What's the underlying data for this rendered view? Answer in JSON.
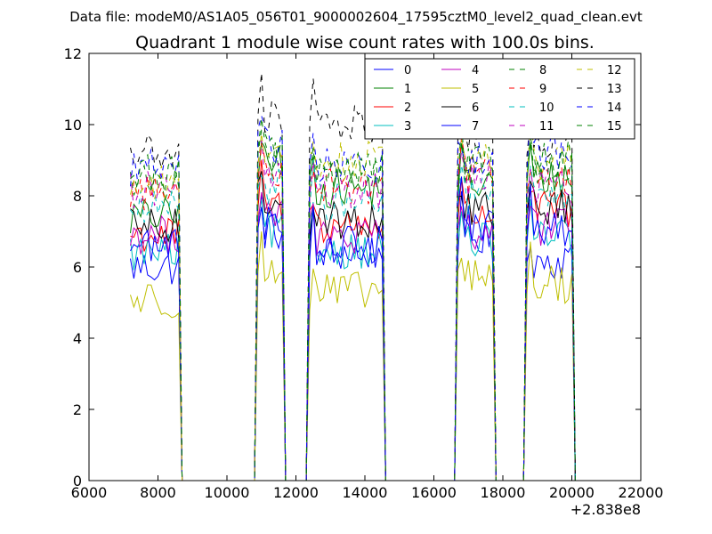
{
  "chart_data": {
    "type": "line",
    "suptitle": "Data file: modeM0/AS1A05_056T01_9000002604_17595cztM0_level2_quad_clean.evt",
    "title": "Quadrant 1 module wise count rates with 100.0s bins.",
    "xlabel": "",
    "ylabel": "",
    "xlim": [
      6000,
      22000
    ],
    "ylim": [
      0,
      12
    ],
    "xticks": [
      6000,
      8000,
      10000,
      12000,
      14000,
      16000,
      18000,
      20000,
      22000
    ],
    "yticks": [
      0,
      2,
      4,
      6,
      8,
      10,
      12
    ],
    "x_offset_label": "+2.838e8",
    "legend": {
      "location": "top-right",
      "columns": 4
    },
    "x_start": 7200,
    "bin_width": 100,
    "segments": [
      {
        "start": 7200,
        "end": 8700
      },
      {
        "start": 10900,
        "end": 11700
      },
      {
        "start": 12400,
        "end": 14600
      },
      {
        "start": 16700,
        "end": 17800
      },
      {
        "start": 18700,
        "end": 20100
      }
    ],
    "gaps": [
      {
        "x": [
          8700,
          8800,
          10800,
          10900
        ],
        "y": [
          0,
          0,
          0,
          0
        ]
      },
      {
        "x": [
          11700,
          11800,
          12300,
          12400
        ],
        "y": [
          0,
          0,
          0,
          0
        ]
      },
      {
        "x": [
          14600,
          14700,
          16600,
          16700
        ],
        "y": [
          0,
          0,
          0,
          0
        ]
      },
      {
        "x": [
          17800,
          17900,
          18600,
          18700
        ],
        "y": [
          0,
          0,
          0,
          0
        ]
      }
    ],
    "series": [
      {
        "name": "0",
        "color": "#0000ff",
        "dash": "solid",
        "levels": [
          6.0,
          7.0,
          6.4,
          6.8,
          6.2
        ]
      },
      {
        "name": "1",
        "color": "#008000",
        "dash": "solid",
        "levels": [
          7.4,
          8.9,
          8.2,
          8.3,
          8.5
        ]
      },
      {
        "name": "2",
        "color": "#ff0000",
        "dash": "solid",
        "levels": [
          6.9,
          7.7,
          7.2,
          7.5,
          7.6
        ]
      },
      {
        "name": "3",
        "color": "#00bfbf",
        "dash": "solid",
        "levels": [
          6.4,
          7.0,
          6.5,
          6.7,
          6.8
        ]
      },
      {
        "name": "4",
        "color": "#bf00bf",
        "dash": "solid",
        "levels": [
          6.9,
          7.6,
          6.8,
          7.0,
          7.1
        ]
      },
      {
        "name": "5",
        "color": "#bfbf00",
        "dash": "solid",
        "levels": [
          5.1,
          5.8,
          5.3,
          5.7,
          5.5
        ]
      },
      {
        "name": "6",
        "color": "#000000",
        "dash": "solid",
        "levels": [
          7.1,
          7.9,
          7.3,
          7.6,
          7.7
        ]
      },
      {
        "name": "7",
        "color": "#0000ff",
        "dash": "solid",
        "levels": [
          6.6,
          7.3,
          6.6,
          7.2,
          7.0
        ]
      },
      {
        "name": "8",
        "color": "#008000",
        "dash": "dashed",
        "levels": [
          8.4,
          9.1,
          8.6,
          8.8,
          8.8
        ]
      },
      {
        "name": "9",
        "color": "#ff0000",
        "dash": "dashed",
        "levels": [
          8.1,
          8.8,
          8.3,
          8.6,
          8.4
        ]
      },
      {
        "name": "10",
        "color": "#00bfbf",
        "dash": "dashed",
        "levels": [
          7.6,
          8.3,
          7.8,
          8.0,
          7.9
        ]
      },
      {
        "name": "11",
        "color": "#bf00bf",
        "dash": "dashed",
        "levels": [
          8.2,
          8.6,
          8.1,
          8.5,
          8.3
        ]
      },
      {
        "name": "12",
        "color": "#bfbf00",
        "dash": "dashed",
        "levels": [
          8.3,
          9.2,
          9.0,
          9.0,
          9.0
        ]
      },
      {
        "name": "13",
        "color": "#000000",
        "dash": "dashed",
        "levels": [
          9.2,
          10.2,
          10.0,
          9.8,
          9.6
        ]
      },
      {
        "name": "14",
        "color": "#0000ff",
        "dash": "dashed",
        "levels": [
          8.8,
          9.4,
          8.8,
          9.1,
          9.2
        ]
      },
      {
        "name": "15",
        "color": "#008000",
        "dash": "dashed",
        "levels": [
          8.6,
          9.4,
          8.7,
          8.9,
          9.0
        ]
      }
    ]
  }
}
